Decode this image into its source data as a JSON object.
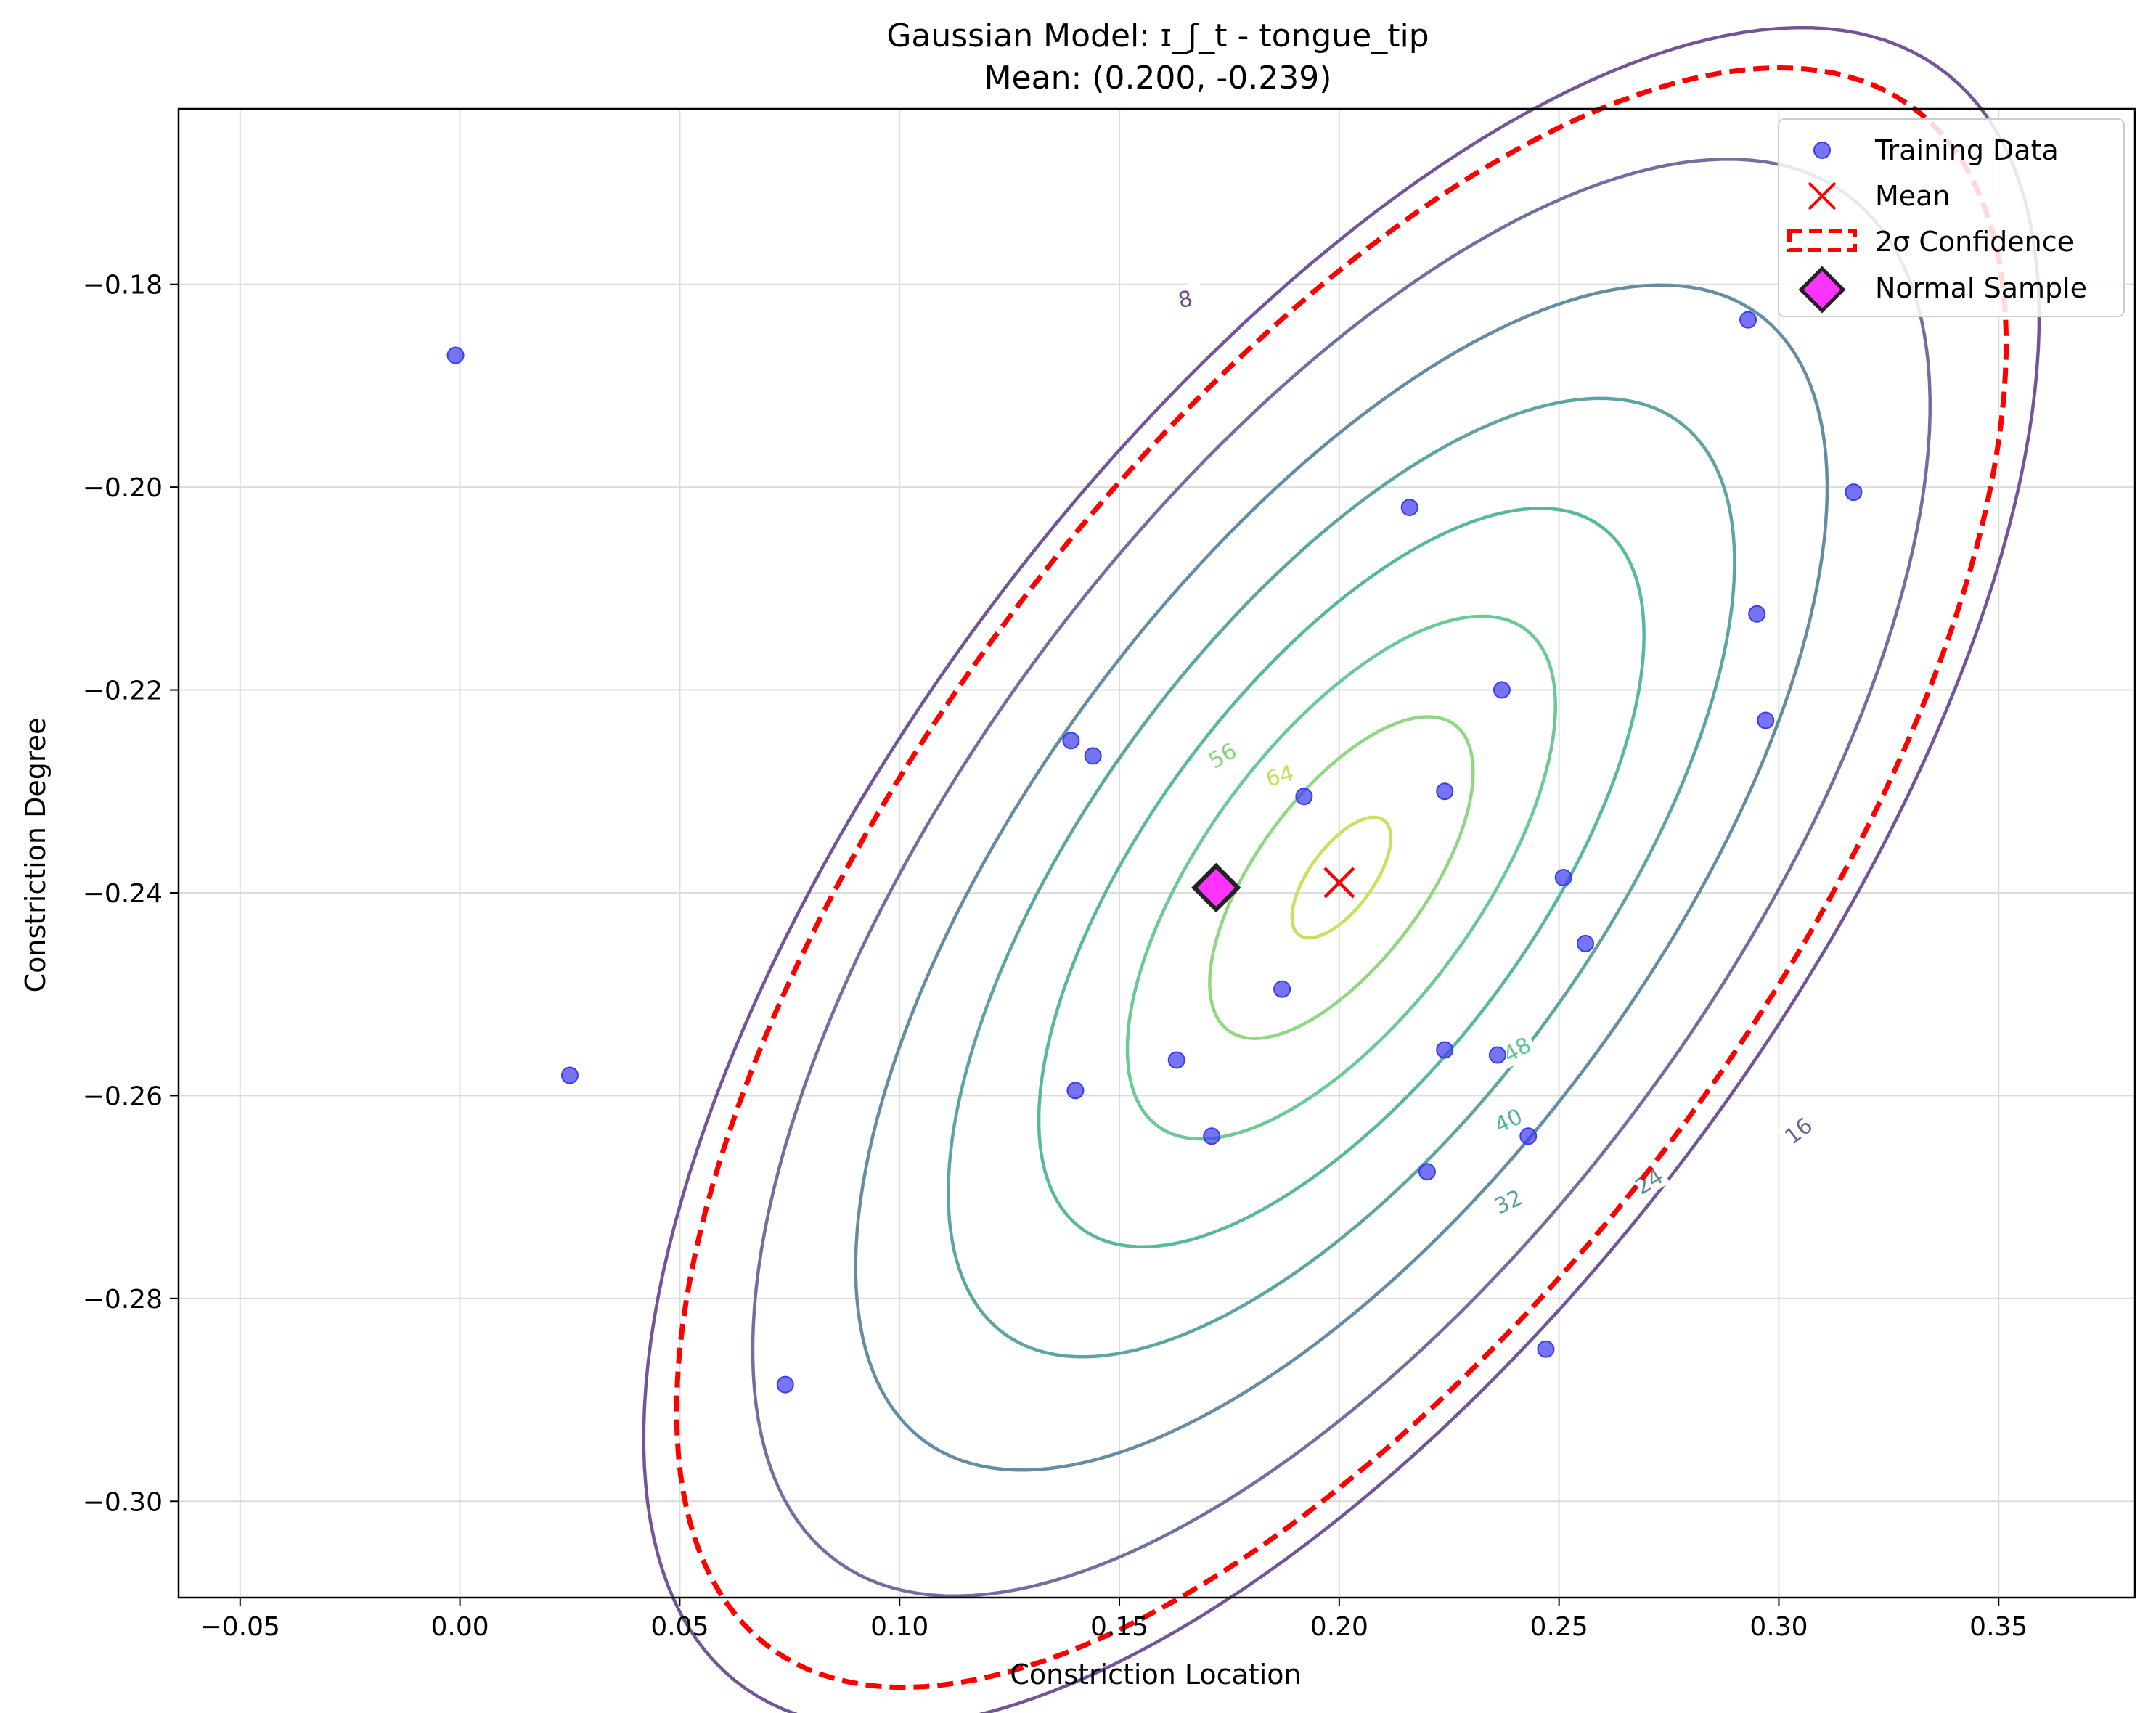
{
  "chart_data": {
    "type": "scatter",
    "title": "Gaussian Model: ɪ_ʃ_t - tongue_tip",
    "subtitle": "Mean: (0.200, -0.239)",
    "xlabel": "Constriction Location",
    "ylabel": "Constriction Degree",
    "xlim": [
      -0.064,
      0.381
    ],
    "ylim": [
      -0.3095,
      -0.1627
    ],
    "xticks": [
      -0.05,
      0.0,
      0.05,
      0.1,
      0.15,
      0.2,
      0.25,
      0.3,
      0.35
    ],
    "xtick_labels": [
      "−0.05",
      "0.00",
      "0.05",
      "0.10",
      "0.15",
      "0.20",
      "0.25",
      "0.30",
      "0.35"
    ],
    "yticks": [
      -0.18,
      -0.2,
      -0.22,
      -0.24,
      -0.26,
      -0.28,
      -0.3
    ],
    "ytick_labels": [
      "−0.18",
      "−0.20",
      "−0.22",
      "−0.24",
      "−0.26",
      "−0.28",
      "−0.30"
    ],
    "grid": true,
    "legend_position": "top-right",
    "colors": {
      "training": "#3a3aee",
      "mean": "#ff0000",
      "confidence": "#ff0000",
      "sample_fill": "#ff33ff",
      "sample_edge": "#222222"
    },
    "training_data": [
      [
        -0.001,
        -0.187
      ],
      [
        0.025,
        -0.258
      ],
      [
        0.074,
        -0.2885
      ],
      [
        0.139,
        -0.225
      ],
      [
        0.144,
        -0.2265
      ],
      [
        0.14,
        -0.2595
      ],
      [
        0.163,
        -0.2565
      ],
      [
        0.171,
        -0.264
      ],
      [
        0.187,
        -0.2495
      ],
      [
        0.192,
        -0.2305
      ],
      [
        0.216,
        -0.202
      ],
      [
        0.224,
        -0.23
      ],
      [
        0.224,
        -0.2555
      ],
      [
        0.22,
        -0.2675
      ],
      [
        0.236,
        -0.256
      ],
      [
        0.237,
        -0.22
      ],
      [
        0.243,
        -0.264
      ],
      [
        0.247,
        -0.285
      ],
      [
        0.251,
        -0.2385
      ],
      [
        0.256,
        -0.245
      ],
      [
        0.293,
        -0.1835
      ],
      [
        0.295,
        -0.2125
      ],
      [
        0.297,
        -0.223
      ],
      [
        0.317,
        -0.2005
      ]
    ],
    "mean": [
      0.2,
      -0.239
    ],
    "normal_sample": [
      0.172,
      -0.2395
    ],
    "contours": [
      {
        "level": "8",
        "color": "#6c4b93",
        "center": [
          0.2005,
          -0.2385
        ],
        "rx": 0.1695,
        "ry": 0.059,
        "rot": 22
      },
      {
        "level": "16",
        "color": "#66689a",
        "center": [
          0.2005,
          -0.2385
        ],
        "rx": 0.143,
        "ry": 0.05,
        "rot": 22
      },
      {
        "level": "24",
        "color": "#5d869e",
        "center": [
          0.2005,
          -0.2385
        ],
        "rx": 0.118,
        "ry": 0.0412,
        "rot": 22
      },
      {
        "level": "32",
        "color": "#54a09d",
        "center": [
          0.2005,
          -0.2385
        ],
        "rx": 0.0955,
        "ry": 0.0333,
        "rot": 22
      },
      {
        "level": "40",
        "color": "#4fb49a",
        "center": [
          0.2005,
          -0.2385
        ],
        "rx": 0.0735,
        "ry": 0.0257,
        "rot": 22
      },
      {
        "level": "48",
        "color": "#61c790",
        "center": [
          0.2005,
          -0.2385
        ],
        "rx": 0.052,
        "ry": 0.0182,
        "rot": 22
      },
      {
        "level": "56",
        "color": "#8ad57a",
        "center": [
          0.2005,
          -0.2385
        ],
        "rx": 0.032,
        "ry": 0.0112,
        "rot": 22
      },
      {
        "level": "64",
        "color": "#c5df57",
        "center": [
          0.2005,
          -0.2385
        ],
        "rx": 0.012,
        "ry": 0.0042,
        "rot": 22
      }
    ],
    "contour_labels": [
      {
        "text": "8",
        "at": [
          0.165,
          -0.1815
        ],
        "angle": -12,
        "color": "#6c4b93"
      },
      {
        "text": "16",
        "at": [
          0.3045,
          -0.2635
        ],
        "angle": -38,
        "color": "#66689a"
      },
      {
        "text": "24",
        "at": [
          0.2705,
          -0.2685
        ],
        "angle": -32,
        "color": "#5d869e"
      },
      {
        "text": "32",
        "at": [
          0.2385,
          -0.2705
        ],
        "angle": -25,
        "color": "#54a09d"
      },
      {
        "text": "40",
        "at": [
          0.2385,
          -0.2625
        ],
        "angle": -25,
        "color": "#4fb49a"
      },
      {
        "text": "48",
        "at": [
          0.2405,
          -0.2555
        ],
        "angle": -30,
        "color": "#61c790"
      },
      {
        "text": "56",
        "at": [
          0.1735,
          -0.2265
        ],
        "angle": -30,
        "color": "#8ad57a"
      },
      {
        "text": "64",
        "at": [
          0.1865,
          -0.2285
        ],
        "angle": -15,
        "color": "#c5df57"
      }
    ],
    "confidence_ellipse": {
      "center": [
        0.2005,
        -0.2385
      ],
      "rx": 0.1615,
      "ry": 0.0562,
      "rot": 22
    },
    "legend": [
      "Training Data",
      "Mean",
      "2σ Confidence",
      "Normal Sample"
    ]
  }
}
